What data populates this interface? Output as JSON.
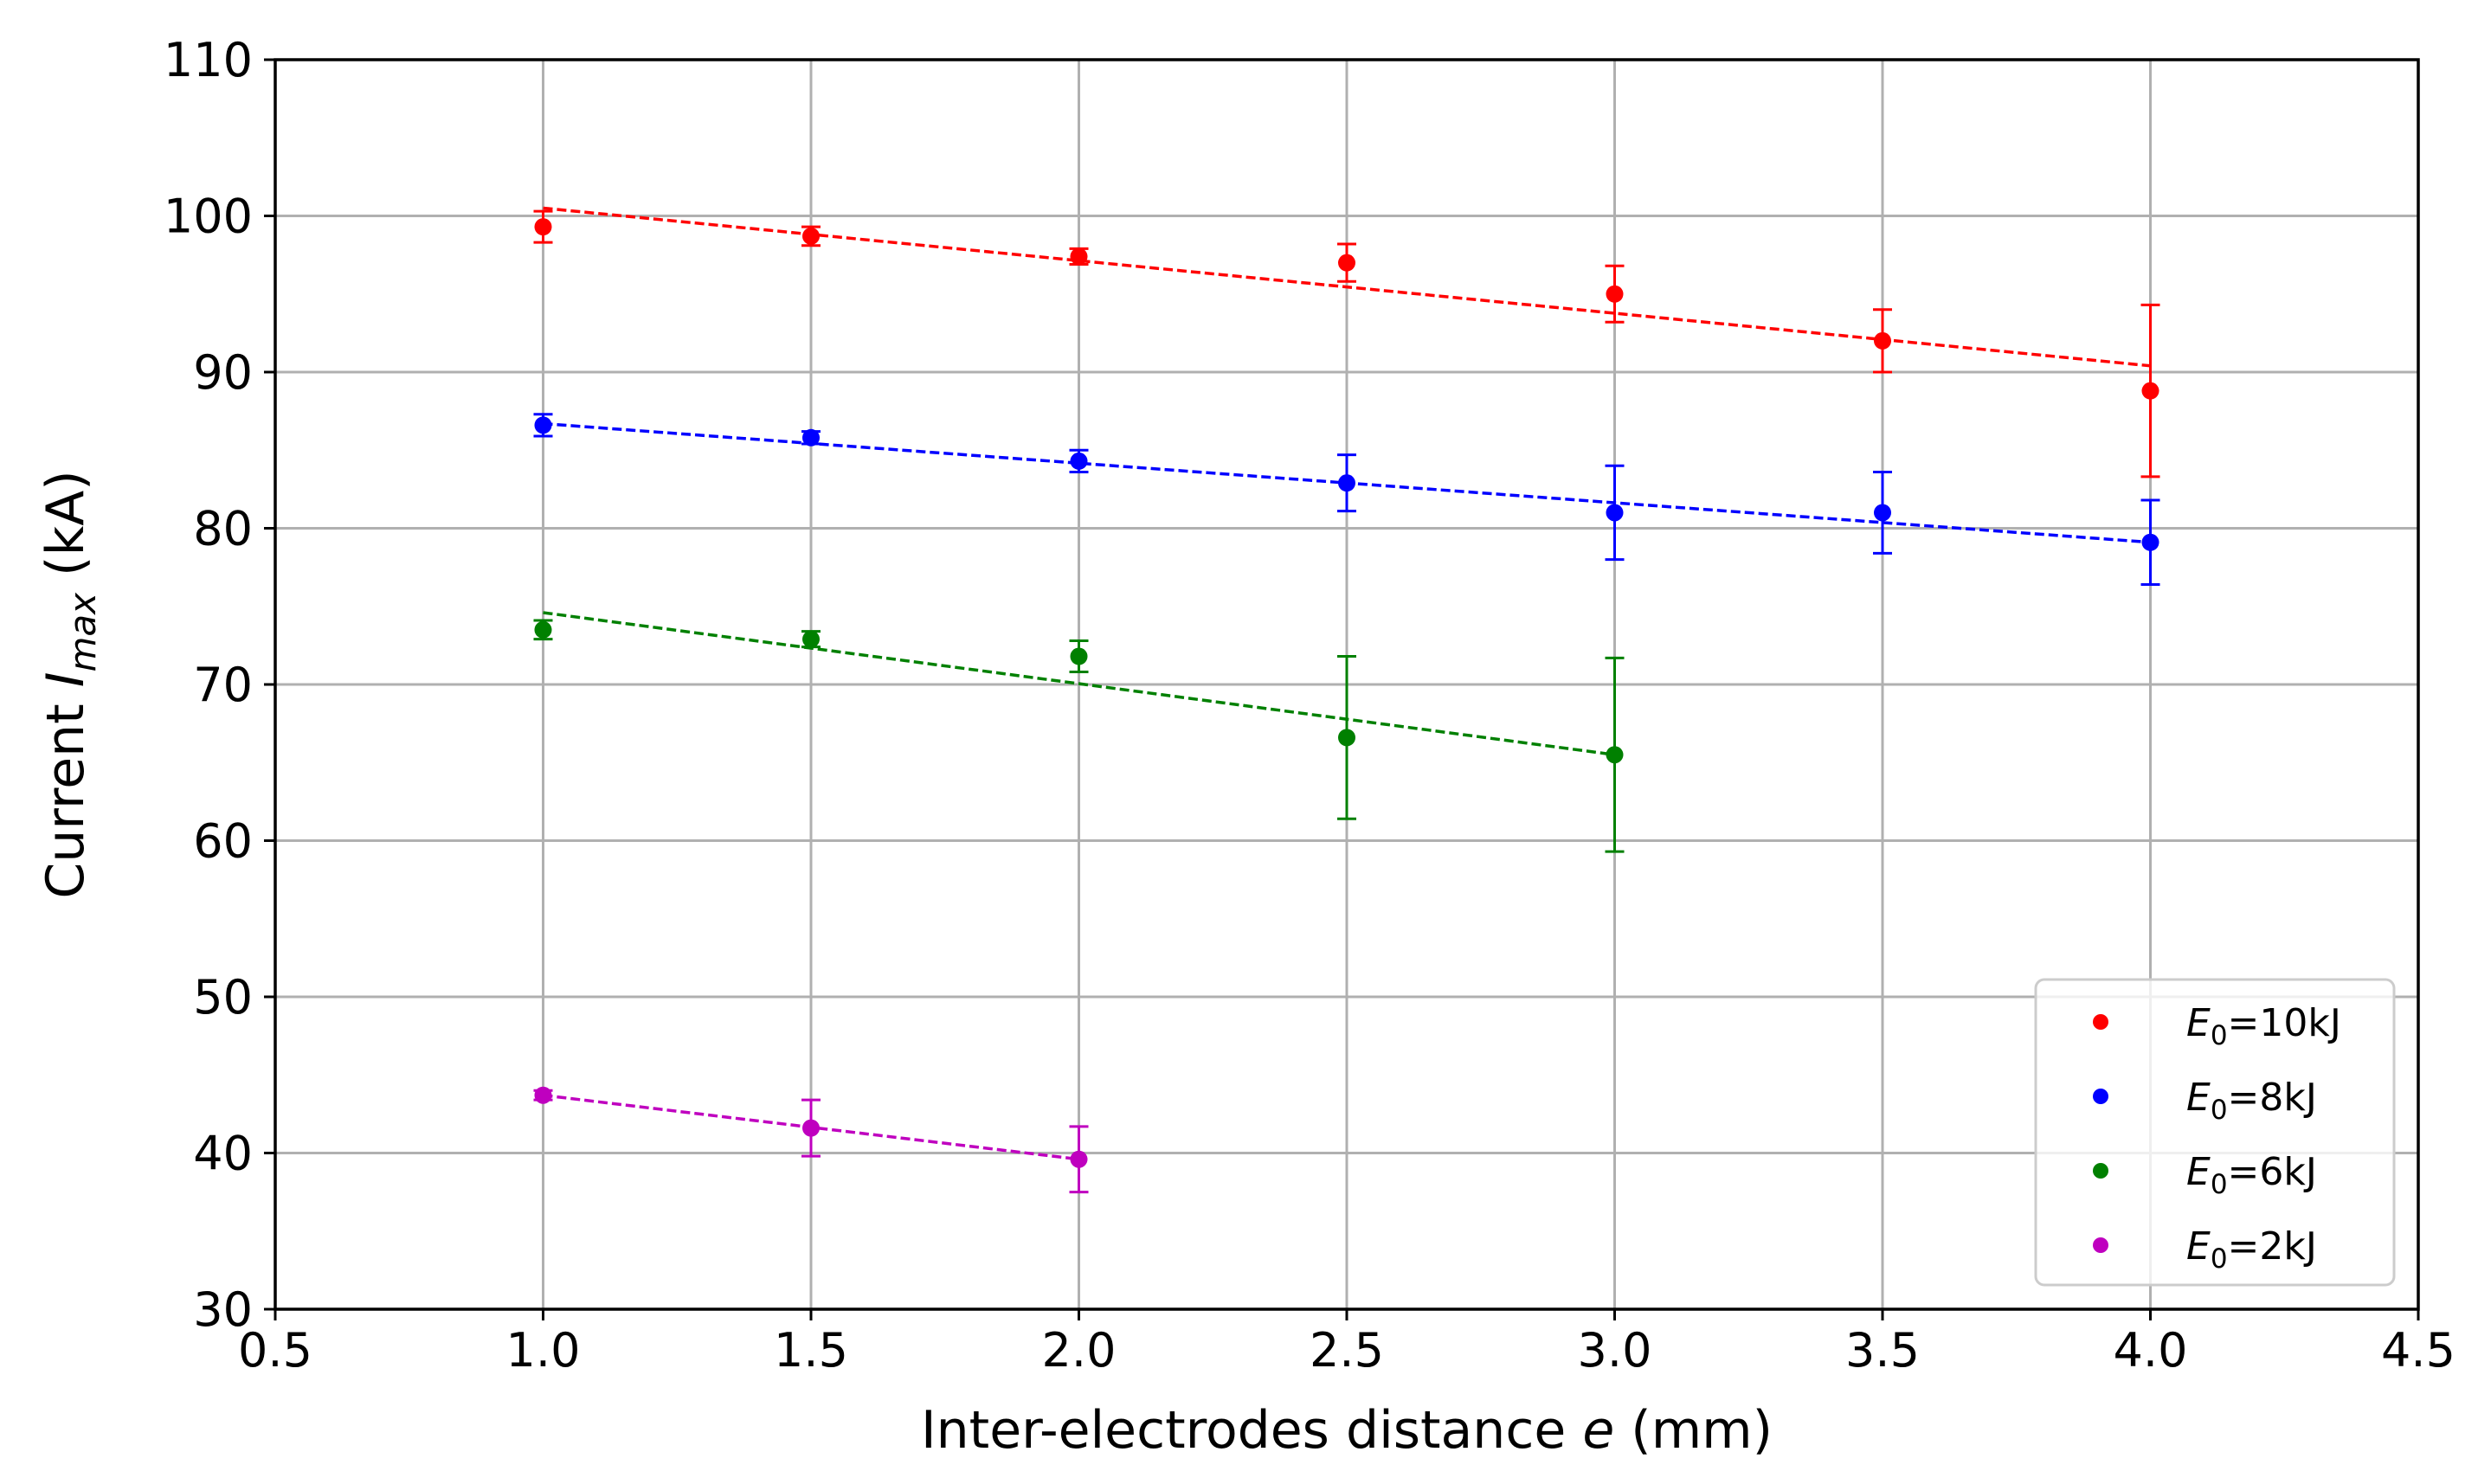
{
  "chart_data": {
    "type": "scatter",
    "xlabel": "Inter-electrodes distance e (mm)",
    "xlabel_parts": {
      "pre": "Inter-electrodes distance ",
      "var": "e",
      "post": " (mm)"
    },
    "ylabel": "Current I_max (kA)",
    "ylabel_parts": {
      "pre": "Current ",
      "var": "I",
      "sub": "max",
      "post": " (kA)"
    },
    "xlim": [
      0.5,
      4.5
    ],
    "ylim": [
      30,
      110
    ],
    "xticks": [
      "0.5",
      "1.0",
      "1.5",
      "2.0",
      "2.5",
      "3.0",
      "3.5",
      "4.0",
      "4.5"
    ],
    "yticks": [
      "30",
      "40",
      "50",
      "60",
      "70",
      "80",
      "90",
      "100",
      "110"
    ],
    "grid": true,
    "legend_position": "lower right",
    "series": [
      {
        "name": "E0=10kJ",
        "legend": {
          "var": "E",
          "sub": "0",
          "rest": "=10kJ"
        },
        "color": "#ff0000",
        "x": [
          1.0,
          1.5,
          2.0,
          2.5,
          3.0,
          3.5,
          4.0
        ],
        "y": [
          99.3,
          98.7,
          97.4,
          97.0,
          95.0,
          92.0,
          88.8
        ],
        "err": [
          1.0,
          0.6,
          0.5,
          1.2,
          1.8,
          2.0,
          5.5
        ],
        "fit": [
          [
            1.0,
            100.5
          ],
          [
            4.0,
            90.4
          ]
        ]
      },
      {
        "name": "E0=8kJ",
        "legend": {
          "var": "E",
          "sub": "0",
          "rest": "=8kJ"
        },
        "color": "#0000ff",
        "x": [
          1.0,
          1.5,
          2.0,
          2.5,
          3.0,
          3.5,
          4.0
        ],
        "y": [
          86.6,
          85.8,
          84.3,
          82.9,
          81.0,
          81.0,
          79.1
        ],
        "err": [
          0.7,
          0.4,
          0.7,
          1.8,
          3.0,
          2.6,
          2.7
        ],
        "fit": [
          [
            1.0,
            86.7
          ],
          [
            4.0,
            79.1
          ]
        ]
      },
      {
        "name": "E0=6kJ",
        "legend": {
          "var": "E",
          "sub": "0",
          "rest": "=6kJ"
        },
        "color": "#008000",
        "x": [
          1.0,
          1.5,
          2.0,
          2.5,
          3.0
        ],
        "y": [
          73.5,
          72.9,
          71.8,
          66.6,
          65.5
        ],
        "err": [
          0.6,
          0.5,
          1.0,
          5.2,
          6.2
        ],
        "fit": [
          [
            1.0,
            74.6
          ],
          [
            3.0,
            65.5
          ]
        ]
      },
      {
        "name": "E0=2kJ",
        "legend": {
          "var": "E",
          "sub": "0",
          "rest": "=2kJ"
        },
        "color": "#bf00bf",
        "x": [
          1.0,
          1.5,
          2.0
        ],
        "y": [
          43.7,
          41.6,
          39.6
        ],
        "err": [
          0.3,
          1.8,
          2.1
        ],
        "fit": [
          [
            1.0,
            43.7
          ],
          [
            2.0,
            39.6
          ]
        ]
      }
    ]
  }
}
